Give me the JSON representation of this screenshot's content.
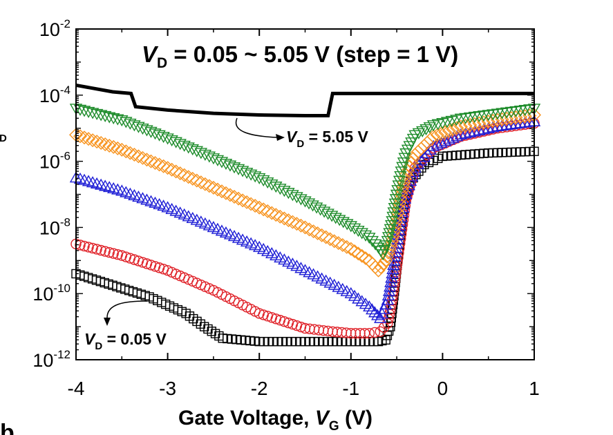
{
  "chart_data": {
    "type": "scatter",
    "xlabel": "Gate Voltage,",
    "xlabel_symbol": "V",
    "xlabel_sub": "G",
    "xlabel_unit": "(V)",
    "ylabel_fragment": "D",
    "panel_letter_fragment": "b",
    "xlim": [
      -4,
      1
    ],
    "ylim_log10": [
      -12,
      -2
    ],
    "y_scale": "log",
    "xticks": [
      -4,
      -3,
      -2,
      -1,
      0,
      1
    ],
    "xtick_labels": [
      "-4",
      "-3",
      "-2",
      "-1",
      "0",
      "1"
    ],
    "yticks_log10": [
      -12,
      -10,
      -8,
      -6,
      -4,
      -2
    ],
    "ytick_base": "10",
    "ytick_exponents": [
      "-12",
      "-10",
      "-8",
      "-6",
      "-4",
      "-2"
    ],
    "annotations": {
      "top_italic": "V",
      "top_sub": "D",
      "top_rest": " = 0.05 ~ 5.05 V (step = 1 V)",
      "high_italic": "V",
      "high_sub": "D",
      "high_rest": " = 5.05 V",
      "low_italic": "V",
      "low_sub": "D",
      "low_rest": " = 0.05 V"
    },
    "series": [
      {
        "marker": "square",
        "color": "#000000",
        "x": [
          -4.0,
          -3.6,
          -3.2,
          -2.8,
          -2.6,
          -2.4,
          -2.0,
          -1.5,
          -1.0,
          -0.7,
          -0.62,
          -0.57,
          -0.52,
          -0.47,
          -0.42,
          -0.35,
          -0.2,
          0.0,
          0.5,
          1.0
        ],
        "log10_y": [
          -9.4,
          -9.75,
          -10.1,
          -10.6,
          -11.0,
          -11.35,
          -11.45,
          -11.45,
          -11.45,
          -11.45,
          -11.4,
          -11.0,
          -9.8,
          -8.5,
          -7.3,
          -6.6,
          -6.1,
          -5.85,
          -5.75,
          -5.7
        ]
      },
      {
        "marker": "circle",
        "color": "#e0242b",
        "x": [
          -4.0,
          -3.5,
          -3.0,
          -2.5,
          -2.0,
          -1.5,
          -1.2,
          -1.0,
          -0.8,
          -0.68,
          -0.6,
          -0.55,
          -0.5,
          -0.45,
          -0.4,
          -0.3,
          -0.1,
          0.2,
          0.6,
          1.0
        ],
        "log10_y": [
          -8.5,
          -8.85,
          -9.3,
          -9.9,
          -10.6,
          -11.05,
          -11.15,
          -11.2,
          -11.2,
          -11.15,
          -10.9,
          -10.2,
          -9.2,
          -8.2,
          -7.2,
          -6.2,
          -5.6,
          -5.25,
          -5.0,
          -4.85
        ]
      },
      {
        "marker": "triangle-up",
        "color": "#1f1fd6",
        "x": [
          -4.0,
          -3.5,
          -3.0,
          -2.5,
          -2.0,
          -1.5,
          -1.0,
          -0.8,
          -0.68,
          -0.6,
          -0.55,
          -0.5,
          -0.45,
          -0.4,
          -0.3,
          -0.1,
          0.2,
          0.6,
          1.0
        ],
        "log10_y": [
          -6.5,
          -6.9,
          -7.4,
          -8.0,
          -8.6,
          -9.3,
          -10.0,
          -10.4,
          -10.75,
          -10.2,
          -9.4,
          -8.5,
          -7.7,
          -7.0,
          -6.2,
          -5.55,
          -5.2,
          -4.95,
          -4.8
        ]
      },
      {
        "marker": "diamond",
        "color": "#f7931e",
        "x": [
          -4.0,
          -3.5,
          -3.0,
          -2.5,
          -2.0,
          -1.5,
          -1.0,
          -0.8,
          -0.7,
          -0.62,
          -0.55,
          -0.5,
          -0.45,
          -0.4,
          -0.3,
          -0.1,
          0.2,
          0.6,
          1.0
        ],
        "log10_y": [
          -5.2,
          -5.65,
          -6.2,
          -6.8,
          -7.4,
          -8.0,
          -8.65,
          -9.0,
          -9.3,
          -9.0,
          -8.4,
          -7.7,
          -7.0,
          -6.4,
          -5.8,
          -5.25,
          -4.95,
          -4.75,
          -4.6
        ]
      },
      {
        "marker": "triangle-down",
        "color": "#1e8c2b",
        "x": [
          -4.0,
          -3.5,
          -3.0,
          -2.5,
          -2.0,
          -1.5,
          -1.0,
          -0.8,
          -0.7,
          -0.65,
          -0.6,
          -0.55,
          -0.5,
          -0.45,
          -0.4,
          -0.3,
          -0.1,
          0.2,
          0.6,
          1.0
        ],
        "log10_y": [
          -4.4,
          -4.75,
          -5.3,
          -5.9,
          -6.5,
          -7.2,
          -7.95,
          -8.3,
          -8.6,
          -8.8,
          -8.4,
          -7.8,
          -7.0,
          -6.3,
          -5.75,
          -5.2,
          -4.9,
          -4.7,
          -4.55,
          -4.4
        ]
      },
      {
        "marker": "line",
        "color": "#000000",
        "x": [
          -4.0,
          -3.6,
          -3.4,
          -3.35,
          -3.0,
          -2.5,
          -2.0,
          -1.5,
          -1.25,
          -1.2,
          -0.5,
          0.0,
          0.5,
          1.0
        ],
        "log10_y": [
          -3.7,
          -3.9,
          -3.95,
          -4.35,
          -4.45,
          -4.55,
          -4.6,
          -4.62,
          -4.62,
          -3.95,
          -3.95,
          -3.95,
          -3.95,
          -3.95
        ]
      }
    ]
  }
}
